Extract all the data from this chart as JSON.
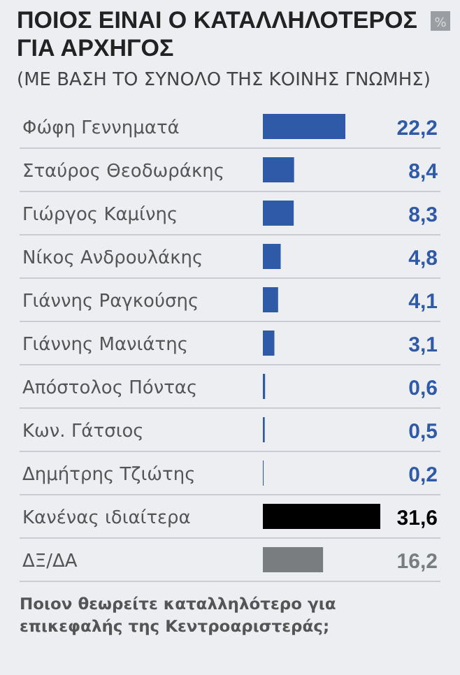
{
  "chart_data": {
    "type": "bar",
    "orientation": "horizontal",
    "title": "ΠΟΙΟΣ ΕΙΝΑΙ Ο ΚΑΤΑΛΛΗΛΟΤΕΡΟΣ ΓΙΑ ΑΡΧΗΓΟΣ",
    "subtitle": "(ΜΕ ΒΑΣΗ ΤΟ ΣΥΝΟΛΟ ΤΗΣ ΚΟΙΝΗΣ ΓΝΩΜΗΣ)",
    "categories": [
      "Φώφη Γεννηματά",
      "Σταύρος Θεοδωράκης",
      "Γιώργος Καμίνης",
      "Νίκος Ανδρουλάκης",
      "Γιάννης Ραγκούσης",
      "Γιάννης Μανιάτης",
      "Απόστολος Πόντας",
      "Κων. Γάτσιος",
      "Δημήτρης Τζιώτης",
      "Κανένας ιδιαίτερα",
      "ΔΞ/ΔΑ"
    ],
    "values": [
      22.2,
      8.4,
      8.3,
      4.8,
      4.1,
      3.1,
      0.6,
      0.5,
      0.2,
      31.6,
      16.2
    ],
    "value_labels": [
      "22,2",
      "8,4",
      "8,3",
      "4,8",
      "4,1",
      "3,1",
      "0,6",
      "0,5",
      "0,2",
      "31,6",
      "16,2"
    ],
    "colors": [
      "#2e5aa8",
      "#2e5aa8",
      "#2e5aa8",
      "#2e5aa8",
      "#2e5aa8",
      "#2e5aa8",
      "#2e5aa8",
      "#2e5aa8",
      "#2e5aa8",
      "#000000",
      "#7a7d80"
    ],
    "annotations": [
      "Ποιον θεωρείτε καταλληλότερο για επικεφαλής της Κεντροαριστεράς;",
      "%"
    ]
  }
}
